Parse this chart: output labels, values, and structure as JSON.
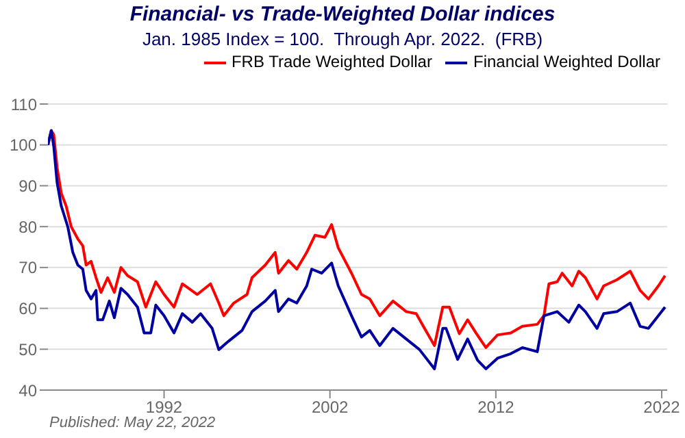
{
  "chart_data": {
    "type": "line",
    "title": "Financial- vs Trade-Weighted Dollar indices",
    "subtitle": "Jan. 1985 Index = 100.  Through Apr. 2022.  (FRB)",
    "series": [
      {
        "name": "FRB Trade Weighted Dollar",
        "color": "#ff0000",
        "x": [
          1985.0,
          1985.2,
          1985.35,
          1985.55,
          1985.8,
          1986.1,
          1986.4,
          1986.8,
          1987.1,
          1987.3,
          1987.6,
          1987.9,
          1988.2,
          1988.6,
          1989.0,
          1989.4,
          1989.8,
          1990.4,
          1990.9,
          1991.5,
          1992.0,
          1992.6,
          1993.1,
          1994.0,
          1994.8,
          1995.3,
          1995.6,
          1996.2,
          1997.0,
          1997.3,
          1998.1,
          1998.7,
          1998.9,
          1999.5,
          2000.0,
          2000.6,
          2001.1,
          2001.7,
          2002.1,
          2002.5,
          2003.3,
          2003.9,
          2004.4,
          2005.0,
          2005.8,
          2006.6,
          2007.2,
          2007.7,
          2008.3,
          2008.8,
          2009.2,
          2009.8,
          2010.3,
          2010.8,
          2011.4,
          2012.1,
          2012.9,
          2013.6,
          2014.5,
          2014.9,
          2015.2,
          2015.7,
          2016.0,
          2016.6,
          2017.0,
          2017.4,
          2018.1,
          2018.5,
          2019.3,
          2020.1,
          2020.7,
          2021.2,
          2021.8,
          2022.2
        ],
        "values": [
          100,
          103.5,
          102.5,
          94.5,
          88.2,
          85,
          80,
          77,
          75.3,
          70.6,
          71.5,
          67.5,
          63.9,
          67.5,
          63.9,
          70,
          68,
          66.5,
          60.3,
          66.5,
          63.4,
          60.3,
          66,
          63.4,
          66,
          61.3,
          58.2,
          61.3,
          63.4,
          67.5,
          70.6,
          73.7,
          68.6,
          71.7,
          69.6,
          73.7,
          77.9,
          77.4,
          80.5,
          74.8,
          68.6,
          63.4,
          62.3,
          58.2,
          61.8,
          59.2,
          58.7,
          55.1,
          50.9,
          60.3,
          60.3,
          53.8,
          57.2,
          54,
          50.4,
          53.5,
          54,
          55.6,
          56.1,
          58.2,
          66,
          66.5,
          68.6,
          65.5,
          69.1,
          67.5,
          62.3,
          65.5,
          67,
          69.1,
          64.4,
          62.3,
          65.5,
          68
        ]
      },
      {
        "name": "Financial Weighted Dollar",
        "color": "#0000a0",
        "x": [
          1985.0,
          1985.2,
          1985.35,
          1985.55,
          1985.8,
          1986.2,
          1986.5,
          1986.8,
          1987.1,
          1987.3,
          1987.6,
          1987.9,
          1988.0,
          1988.3,
          1988.7,
          1989.0,
          1989.4,
          1989.8,
          1990.4,
          1990.8,
          1991.2,
          1991.5,
          1992.0,
          1992.6,
          1993.1,
          1993.7,
          1994.2,
          1994.9,
          1995.3,
          1995.9,
          1996.7,
          1997.3,
          1998.1,
          1998.7,
          1998.9,
          1999.5,
          2000.0,
          2000.6,
          2000.9,
          2001.5,
          2002.1,
          2002.5,
          2003.3,
          2003.9,
          2004.4,
          2005.0,
          2005.8,
          2006.6,
          2007.4,
          2008.3,
          2008.8,
          2009.0,
          2009.7,
          2010.3,
          2010.9,
          2011.4,
          2012.1,
          2012.9,
          2013.6,
          2014.5,
          2014.9,
          2015.7,
          2016.4,
          2017.0,
          2017.4,
          2018.1,
          2018.5,
          2019.3,
          2020.1,
          2020.7,
          2021.2,
          2021.8,
          2022.2
        ],
        "values": [
          100,
          103.5,
          99.6,
          90.8,
          85.1,
          79.9,
          73.7,
          70.6,
          69.6,
          64.4,
          62.3,
          64.4,
          57.2,
          57.2,
          61.8,
          57.7,
          64.9,
          63.4,
          60.3,
          54,
          54,
          60.8,
          58.2,
          54,
          58.7,
          56.6,
          58.7,
          55.1,
          49.9,
          52,
          54.6,
          59.2,
          61.8,
          64.4,
          59.2,
          62.3,
          61.3,
          65.5,
          69.6,
          68.6,
          71.1,
          65.5,
          58.2,
          53,
          54.6,
          50.9,
          55.1,
          52.5,
          49.9,
          45.2,
          55.1,
          55.1,
          47.5,
          52.5,
          47.3,
          45.2,
          47.8,
          48.9,
          50.4,
          49.4,
          58.2,
          59.2,
          56.6,
          60.8,
          59.2,
          55.1,
          58.7,
          59.2,
          61.3,
          55.6,
          55.1,
          58.2,
          60.3
        ]
      }
    ],
    "xlim": [
      1985,
      2022.33
    ],
    "xticks": [
      1992,
      2002,
      2012,
      2022
    ],
    "ylim": [
      40,
      110
    ],
    "yticks": [
      40,
      50,
      60,
      70,
      80,
      90,
      100,
      110
    ],
    "grid": "y",
    "legend": "top right",
    "annotations": [
      "Published: May 22, 2022"
    ]
  }
}
